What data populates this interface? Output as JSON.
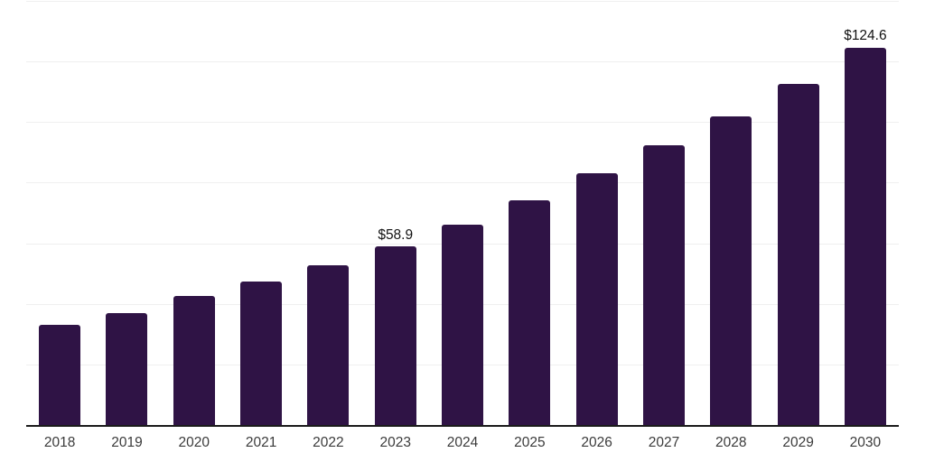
{
  "chart_data": {
    "type": "bar",
    "title": "",
    "xlabel": "",
    "ylabel": "",
    "categories": [
      "2018",
      "2019",
      "2020",
      "2021",
      "2022",
      "2023",
      "2024",
      "2025",
      "2026",
      "2027",
      "2028",
      "2029",
      "2030"
    ],
    "values": [
      33.0,
      36.9,
      42.5,
      47.3,
      52.6,
      58.9,
      66.2,
      74.3,
      83.0,
      92.2,
      102.0,
      112.7,
      124.6
    ],
    "bar_labels": [
      "",
      "",
      "",
      "",
      "",
      "$58.9",
      "",
      "",
      "",
      "",
      "",
      "",
      "$124.6"
    ],
    "ylim": [
      0,
      140
    ],
    "gridline_step": 20,
    "grid": true,
    "legend": false,
    "y_axis_labels_visible": false,
    "colors": {
      "bar": "#2f1345",
      "axis": "#1a1a1a",
      "gridline": "#efefef",
      "tick_label": "#3b3b3b",
      "value_label": "#111111",
      "background": "#ffffff"
    }
  }
}
